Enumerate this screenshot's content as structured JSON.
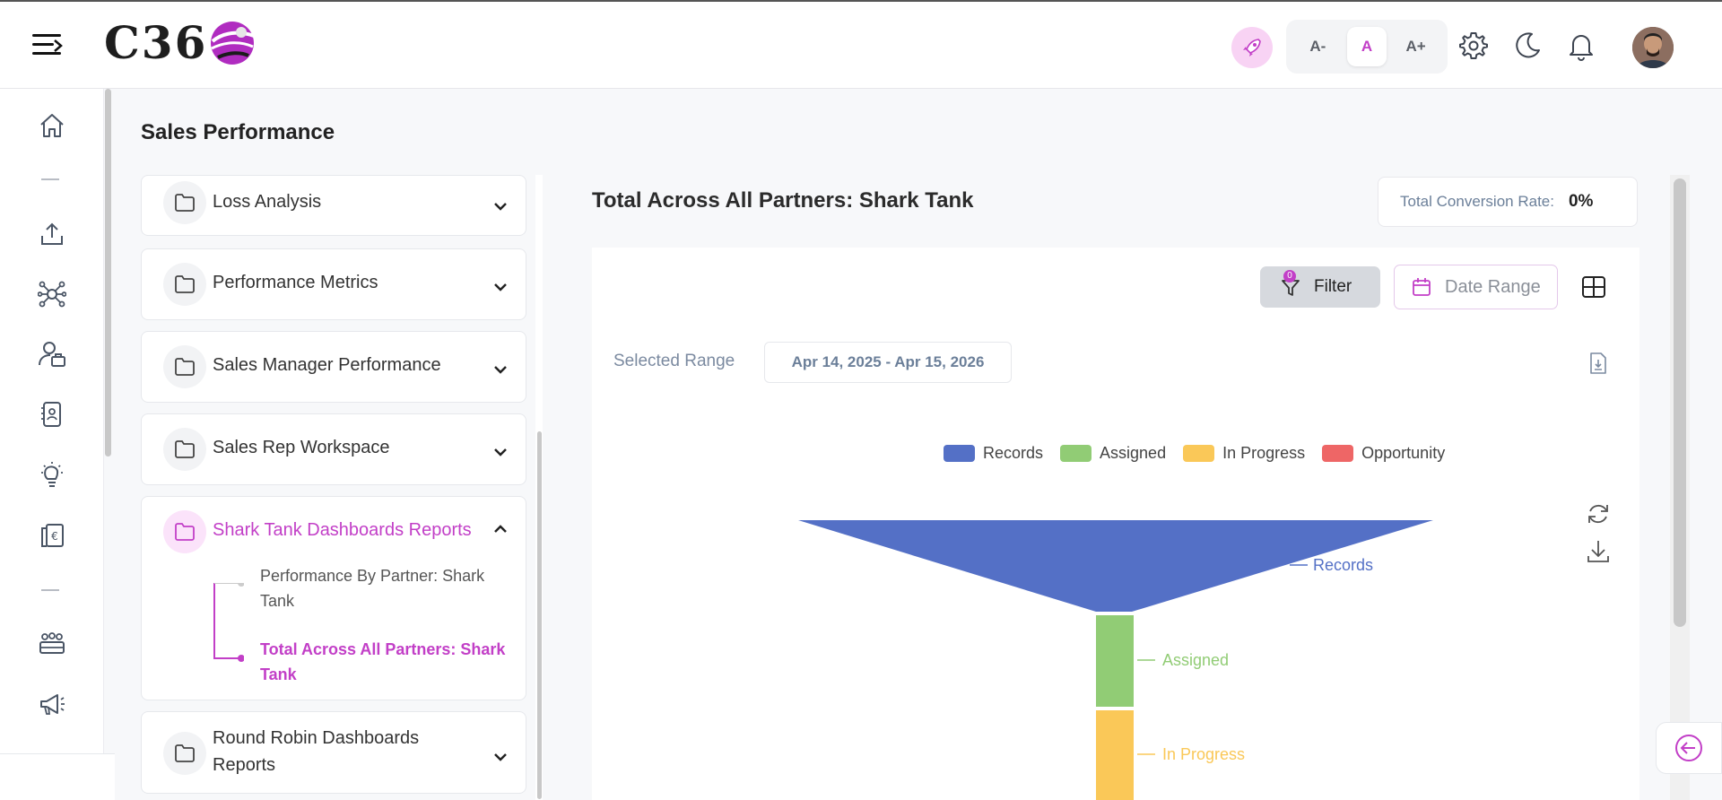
{
  "header": {
    "logo_text": "C36",
    "font_controls": [
      "A-",
      "A",
      "A+"
    ],
    "active_font_control": "A"
  },
  "sidebar": {
    "icons": [
      "home-icon",
      "upload-icon",
      "network-icon",
      "user-briefcase-icon",
      "id-badge-icon",
      "lightbulb-icon",
      "receipt-icon",
      "team-icon",
      "megaphone-icon"
    ]
  },
  "page": {
    "title": "Sales Performance"
  },
  "report_list": {
    "folders": [
      {
        "label": "Loss Analysis",
        "expanded": false
      },
      {
        "label": "Performance Metrics",
        "expanded": false
      },
      {
        "label": "Sales Manager Performance",
        "expanded": false
      },
      {
        "label": "Sales Rep Workspace",
        "expanded": false
      },
      {
        "label": "Shark Tank Dashboards Reports",
        "expanded": true
      },
      {
        "label": "Round Robin Dashboards Reports",
        "expanded": false
      }
    ],
    "shark_tank_items": [
      {
        "label": "Performance By Partner: Shark Tank",
        "active": false
      },
      {
        "label": "Total Across All Partners: Shark Tank",
        "active": true
      }
    ]
  },
  "main": {
    "title": "Total Across All Partners: Shark Tank",
    "conversion_label": "Total Conversion Rate:",
    "conversion_value": "0%",
    "filter_label": "Filter",
    "filter_count": "0",
    "date_range_label": "Date Range",
    "selected_range_label": "Selected Range",
    "selected_range_value": "Apr 14, 2025 - Apr 15, 2026"
  },
  "colors": {
    "accent": "#c23fc7",
    "records": "#5470c6",
    "assigned": "#91cc75",
    "in_progress": "#fac858",
    "opportunity": "#ee6666"
  },
  "chart_data": {
    "type": "funnel",
    "legend": [
      "Records",
      "Assigned",
      "In Progress",
      "Opportunity"
    ],
    "legend_position": "top-center",
    "stages": [
      {
        "name": "Records",
        "label": "Records"
      },
      {
        "name": "Assigned",
        "label": "Assigned"
      },
      {
        "name": "In Progress",
        "label": "In Progress"
      },
      {
        "name": "Opportunity",
        "label": "Opportunity"
      }
    ]
  }
}
